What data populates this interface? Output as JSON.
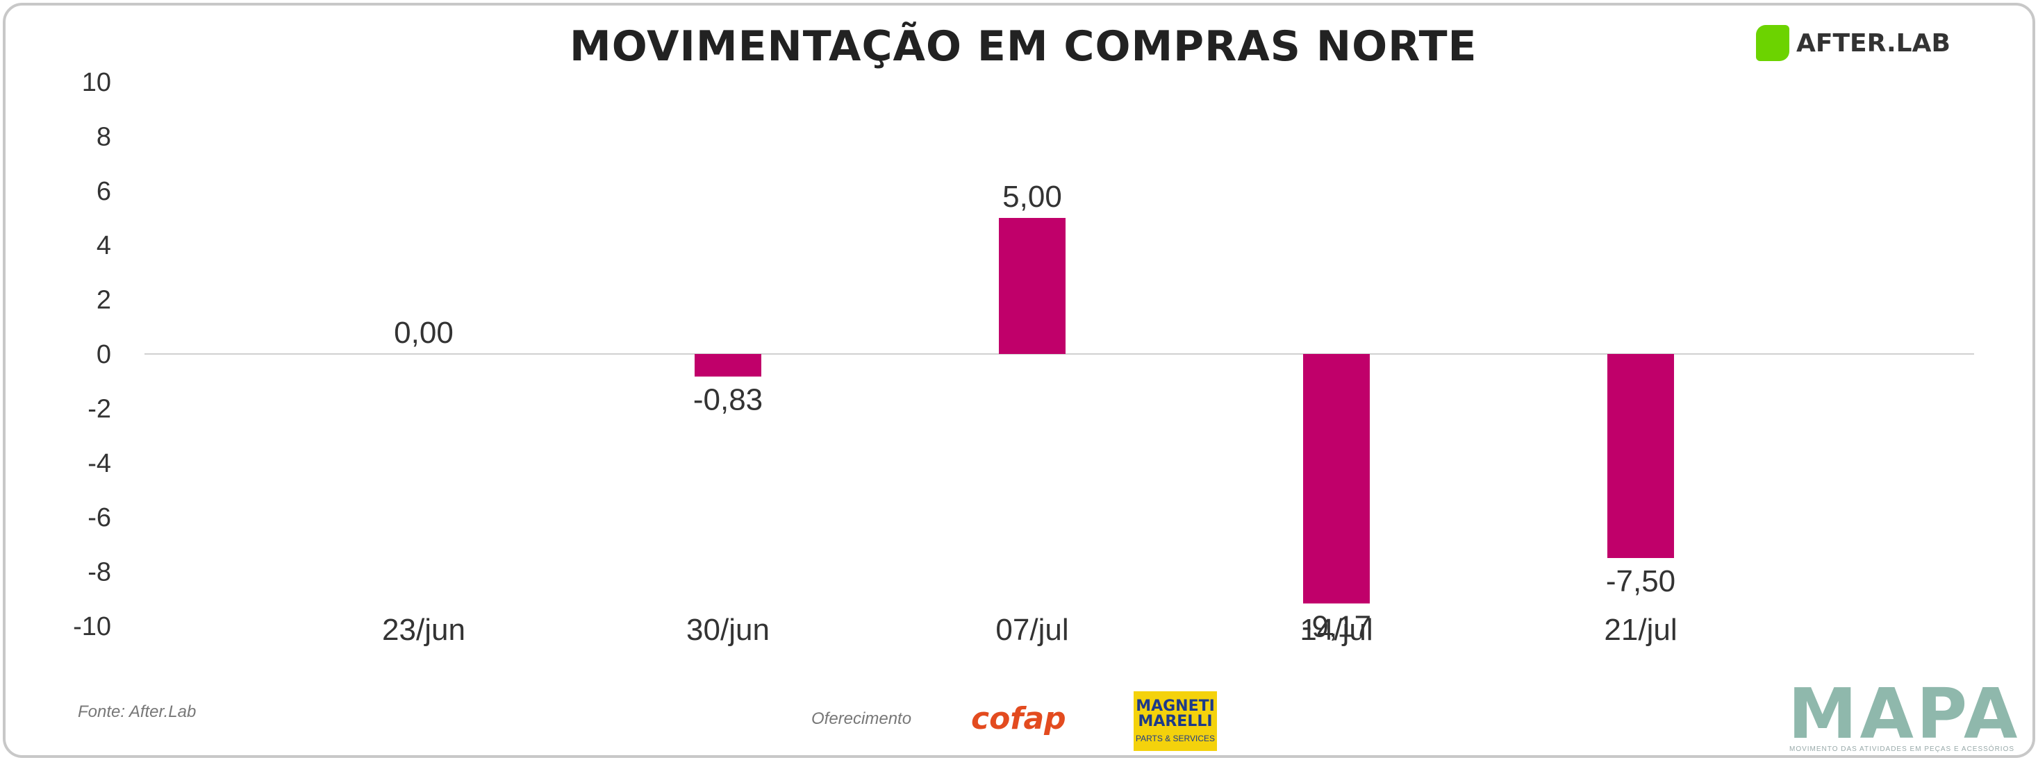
{
  "header": {
    "title": "MOVIMENTAÇÃO EM COMPRAS NORTE",
    "brand_logo_text": "AFTER.LAB"
  },
  "footer": {
    "source": "Fonte: After.Lab",
    "sponsor_label": "Oferecimento",
    "sponsor_1": "cofap",
    "sponsor_2_line1": "MAGNETI",
    "sponsor_2_line2": "MARELLI",
    "sponsor_2_sub": "PARTS & SERVICES",
    "mapa_logo": "MAPA",
    "mapa_tagline": "MOVIMENTO DAS ATIVIDADES EM PEÇAS E ACESSÓRIOS"
  },
  "colors": {
    "bar": "#c0006a",
    "axis_text": "#333333",
    "zero_line": "#d0d0d0",
    "brand_green": "#6cd300"
  },
  "chart_data": {
    "type": "bar",
    "title": "MOVIMENTAÇÃO EM COMPRAS NORTE",
    "categories": [
      "23/jun",
      "30/jun",
      "07/jul",
      "14/jul",
      "21/jul"
    ],
    "values": [
      0.0,
      -0.83,
      5.0,
      -9.17,
      -7.5
    ],
    "data_labels": [
      "0,00",
      "-0,83",
      "5,00",
      "-9,17",
      "-7,50"
    ],
    "ylim": [
      -10,
      10
    ],
    "yticks": [
      10,
      8,
      6,
      4,
      2,
      0,
      -2,
      -4,
      -6,
      -8,
      -10
    ],
    "xlabel": "",
    "ylabel": "",
    "grid": false,
    "legend": "none"
  }
}
